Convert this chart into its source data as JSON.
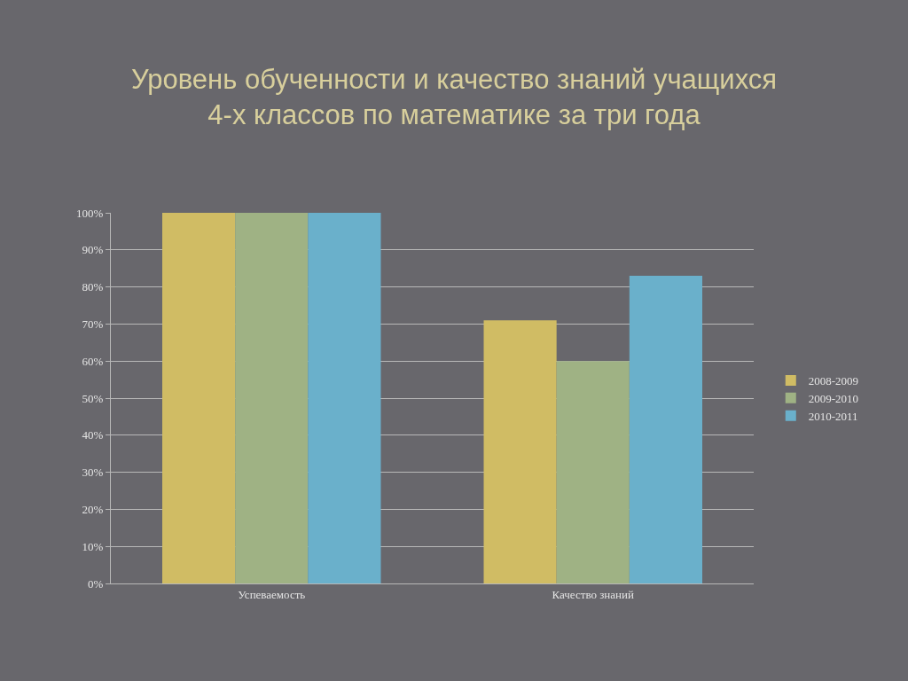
{
  "chart_data": {
    "type": "bar",
    "title": "Уровень обученности и качество знаний учащихся\n4-х классов по математике за три года",
    "categories": [
      "Успеваемость",
      "Качество знаний"
    ],
    "series": [
      {
        "name": "2008-2009",
        "color": "#d0bc64",
        "values": [
          100,
          71
        ]
      },
      {
        "name": "2009-2010",
        "color": "#9fb284",
        "values": [
          100,
          60
        ]
      },
      {
        "name": "2010-2011",
        "color": "#6ab0cb",
        "values": [
          100,
          83
        ]
      }
    ],
    "ylim": [
      0,
      100
    ],
    "yticks": [
      {
        "value": 0,
        "label": "0%"
      },
      {
        "value": 10,
        "label": "10%"
      },
      {
        "value": 20,
        "label": "20%"
      },
      {
        "value": 30,
        "label": "30%"
      },
      {
        "value": 40,
        "label": "40%"
      },
      {
        "value": 50,
        "label": "50%"
      },
      {
        "value": 60,
        "label": "60%"
      },
      {
        "value": 70,
        "label": "70%"
      },
      {
        "value": 80,
        "label": "80%"
      },
      {
        "value": 90,
        "label": "90%"
      },
      {
        "value": 100,
        "label": "100%"
      }
    ],
    "grid": "y",
    "legend": "right"
  }
}
